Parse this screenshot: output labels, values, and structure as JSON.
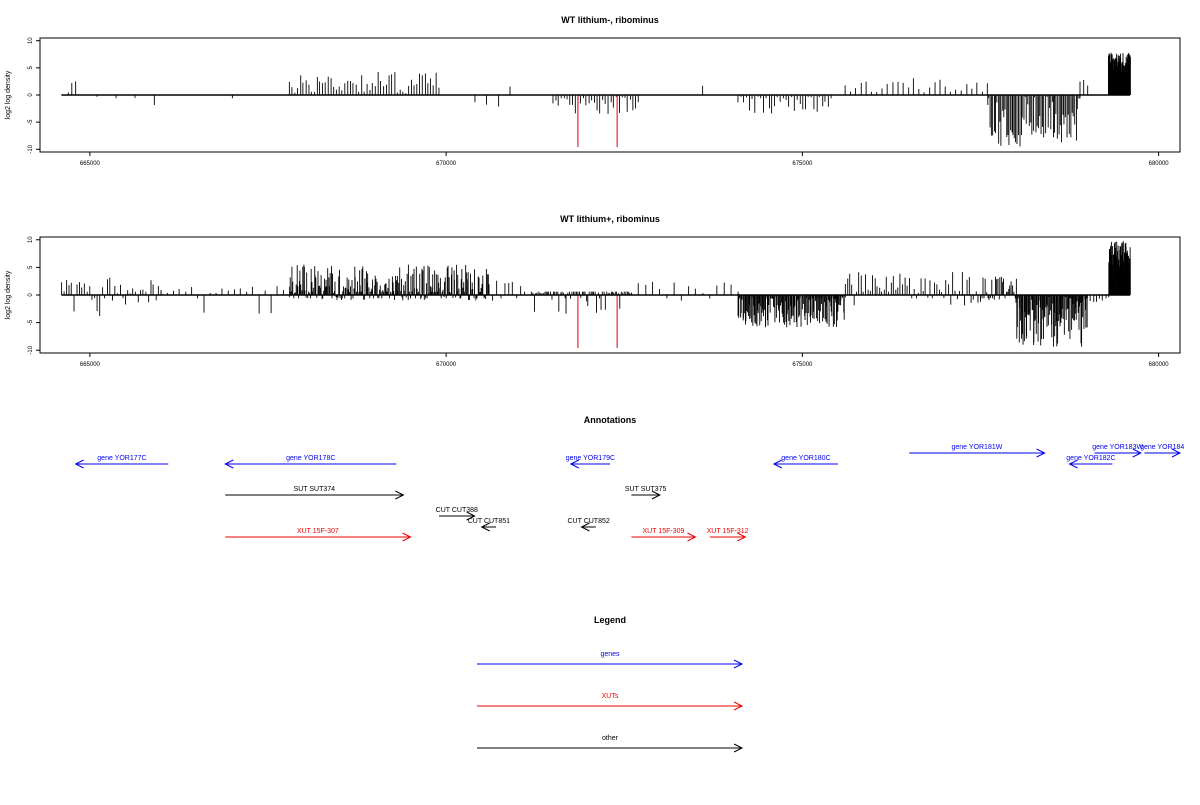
{
  "chart_data": [
    {
      "type": "bar",
      "title": "WT lithium-, ribominus",
      "ylabel": "log2 log density",
      "xlim": [
        664300,
        680300
      ],
      "ylim": [
        -10.5,
        10.5
      ],
      "xticks": [
        "665000",
        "670000",
        "675000",
        "680000"
      ],
      "yticks": [
        "-10",
        "-5",
        "0",
        "5",
        "10"
      ],
      "baseline": {
        "from": 664600,
        "to": 679600,
        "y": 0
      },
      "highlight_color": "#dd0000",
      "highlight_bars": [
        {
          "x": 671850,
          "y": -9.6
        },
        {
          "x": 672400,
          "y": -9.6
        }
      ],
      "region_ranges": [
        {
          "from": 664700,
          "to": 664800,
          "count": 3,
          "min": 0,
          "max": 3.2
        },
        {
          "from": 665100,
          "to": 665900,
          "count": 4,
          "min": -2.3,
          "max": 0
        },
        {
          "from": 667000,
          "to": 667000,
          "count": 1,
          "min": -2.1,
          "max": 0
        },
        {
          "from": 667800,
          "to": 669900,
          "count": 55,
          "min": 0,
          "max": 4.5
        },
        {
          "from": 670400,
          "to": 670900,
          "count": 4,
          "min": -2.8,
          "max": 2.0
        },
        {
          "from": 671500,
          "to": 672700,
          "count": 32,
          "min": -3.5,
          "max": 0
        },
        {
          "from": 673600,
          "to": 673600,
          "count": 1,
          "min": 0,
          "max": 3.9
        },
        {
          "from": 674100,
          "to": 675400,
          "count": 34,
          "min": -3.8,
          "max": 0
        },
        {
          "from": 675600,
          "to": 677600,
          "count": 28,
          "min": 0,
          "max": 3.1
        },
        {
          "from": 677600,
          "to": 678900,
          "count": 70,
          "min": -9.5,
          "max": 0
        },
        {
          "from": 678900,
          "to": 679000,
          "count": 3,
          "min": 0,
          "max": 3.0
        },
        {
          "from": 679300,
          "to": 679600,
          "count": 80,
          "min": 4.0,
          "max": 7.8
        }
      ]
    },
    {
      "type": "bar",
      "title": "WT lithium+, ribominus",
      "ylabel": "log2 log density",
      "xlim": [
        664300,
        680300
      ],
      "ylim": [
        -10.5,
        10.5
      ],
      "xticks": [
        "665000",
        "670000",
        "675000",
        "680000"
      ],
      "yticks": [
        "-10",
        "-5",
        "0",
        "5",
        "10"
      ],
      "baseline": {
        "from": 664600,
        "to": 679600,
        "y": 0
      },
      "highlight_color": "#dd0000",
      "highlight_bars": [
        {
          "x": 671850,
          "y": -9.6
        },
        {
          "x": 672400,
          "y": -9.6
        }
      ],
      "region_ranges": [
        {
          "from": 664600,
          "to": 666000,
          "count": 40,
          "min": -3.9,
          "max": 3.2
        },
        {
          "from": 666000,
          "to": 667800,
          "count": 22,
          "min": -3.8,
          "max": 1.6
        },
        {
          "from": 667800,
          "to": 670600,
          "count": 240,
          "min": -1.0,
          "max": 5.5
        },
        {
          "from": 670600,
          "to": 671100,
          "count": 10,
          "min": -1.8,
          "max": 2.8
        },
        {
          "from": 671200,
          "to": 672600,
          "count": 70,
          "min": -3.8,
          "max": 0.5
        },
        {
          "from": 672600,
          "to": 674100,
          "count": 16,
          "min": -2.0,
          "max": 3.0
        },
        {
          "from": 674100,
          "to": 675600,
          "count": 140,
          "min": -6.0,
          "max": 0
        },
        {
          "from": 675600,
          "to": 677500,
          "count": 60,
          "min": -2.0,
          "max": 4.2
        },
        {
          "from": 677500,
          "to": 678000,
          "count": 30,
          "min": -1.0,
          "max": 3.8
        },
        {
          "from": 678000,
          "to": 679000,
          "count": 100,
          "min": -9.5,
          "max": 0
        },
        {
          "from": 679000,
          "to": 679300,
          "count": 8,
          "min": -2.0,
          "max": 0
        },
        {
          "from": 679300,
          "to": 679600,
          "count": 90,
          "min": 3.0,
          "max": 9.8
        }
      ]
    },
    {
      "type": "annotation_track",
      "title": "Annotations",
      "features": [
        {
          "label": "gene YOR177C",
          "color": "#0000ee",
          "direction": "left",
          "from": 664800,
          "to": 666100,
          "row": 1
        },
        {
          "label": "gene YOR178C",
          "color": "#0000ee",
          "direction": "left",
          "from": 666900,
          "to": 669300,
          "row": 1
        },
        {
          "label": "gene YOR179C",
          "color": "#0000ee",
          "direction": "left",
          "from": 671750,
          "to": 672300,
          "row": 1
        },
        {
          "label": "gene YOR180C",
          "color": "#0000ee",
          "direction": "left",
          "from": 674600,
          "to": 675500,
          "row": 1
        },
        {
          "label": "gene YOR181W",
          "color": "#0000ee",
          "direction": "right",
          "from": 676500,
          "to": 678400,
          "row": 0
        },
        {
          "label": "gene YOR182C",
          "color": "#0000ee",
          "direction": "left",
          "from": 678750,
          "to": 679350,
          "row": 1
        },
        {
          "label": "gene YOR183W",
          "color": "#0000ee",
          "direction": "right",
          "from": 679100,
          "to": 679750,
          "row": 0
        },
        {
          "label": "gene YOR184",
          "color": "#0000ee",
          "direction": "right",
          "from": 679800,
          "to": 680300,
          "row": 0
        },
        {
          "label": "SUT SUT374",
          "color": "#000000",
          "direction": "right",
          "from": 666900,
          "to": 669400,
          "row": 2
        },
        {
          "label": "SUT SUT375",
          "color": "#000000",
          "direction": "right",
          "from": 672600,
          "to": 673000,
          "row": 2
        },
        {
          "label": "CUT CUT388",
          "color": "#000000",
          "direction": "right",
          "from": 669900,
          "to": 670400,
          "row": 3
        },
        {
          "label": "CUT CUT851",
          "color": "#000000",
          "direction": "left",
          "from": 670500,
          "to": 670700,
          "row": 4
        },
        {
          "label": "CUT CUT852",
          "color": "#000000",
          "direction": "left",
          "from": 671900,
          "to": 672100,
          "row": 4
        },
        {
          "label": "XUT 15F-307",
          "color": "#ee0000",
          "direction": "right",
          "from": 666900,
          "to": 669500,
          "row": 5
        },
        {
          "label": "XUT 15F-309",
          "color": "#ee0000",
          "direction": "right",
          "from": 672600,
          "to": 673500,
          "row": 5
        },
        {
          "label": "XUT 15F-312",
          "color": "#ee0000",
          "direction": "right",
          "from": 673700,
          "to": 674200,
          "row": 5
        }
      ]
    },
    {
      "type": "legend",
      "title": "Legend",
      "items": [
        {
          "label": "genes",
          "color": "#0000ee"
        },
        {
          "label": "XUTs",
          "color": "#ee0000"
        },
        {
          "label": "other",
          "color": "#000000"
        }
      ]
    }
  ]
}
